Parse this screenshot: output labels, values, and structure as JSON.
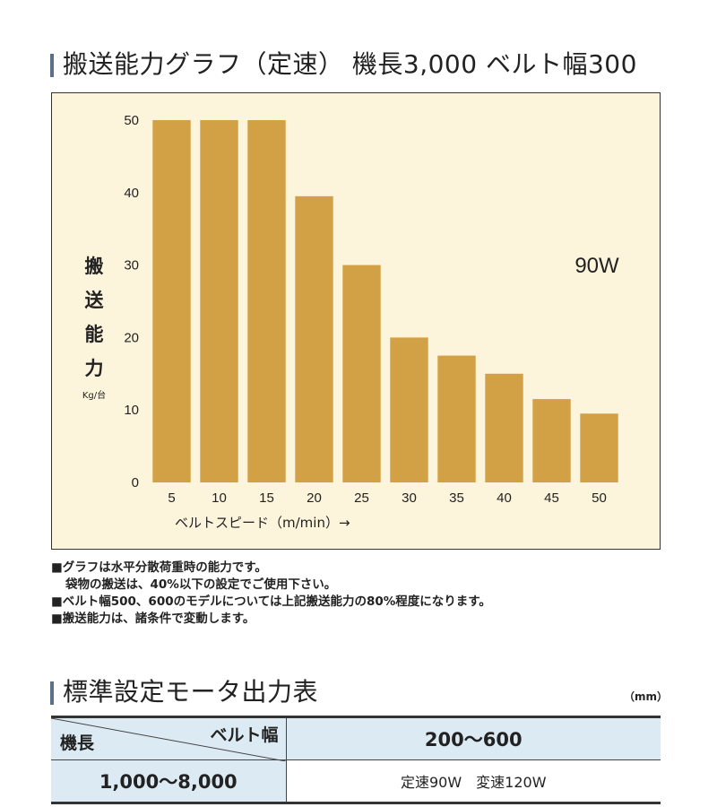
{
  "title": "搬送能力グラフ（定速） 機長3,000 ベルト幅300",
  "chart_data": {
    "type": "bar",
    "categories": [
      "5",
      "10",
      "15",
      "20",
      "25",
      "30",
      "35",
      "40",
      "45",
      "50"
    ],
    "values": [
      50,
      50,
      50,
      39.5,
      30,
      20,
      17.5,
      15,
      11.5,
      9.5
    ],
    "ylim": [
      0,
      50
    ],
    "yticks": [
      "0",
      "10",
      "20",
      "30",
      "40",
      "50"
    ],
    "ylabel_chars": [
      "搬",
      "送",
      "能",
      "力"
    ],
    "ylabel_unit": "Kg/台",
    "xlabel": "ベルトスピード（m/min）→",
    "annotation": "90W",
    "bar_color": "#d2a145",
    "background": "#fdf4dc",
    "grid": false
  },
  "notes": [
    "■グラフは水平分散荷重時の能力です。",
    "袋物の搬送は、40%以下の設定でご使用下さい。",
    "■ベルト幅500、600のモデルについては上記搬送能力の80%程度になります。",
    "■搬送能力は、諸条件で変動します。"
  ],
  "table": {
    "title": "標準設定モータ出力表",
    "unit": "（mm）",
    "row_header_label": "機長",
    "col_header_label": "ベルト幅",
    "col_value": "200〜600",
    "row_value": "1,000〜8,000",
    "cell_value": "定速90W　変速120W"
  }
}
